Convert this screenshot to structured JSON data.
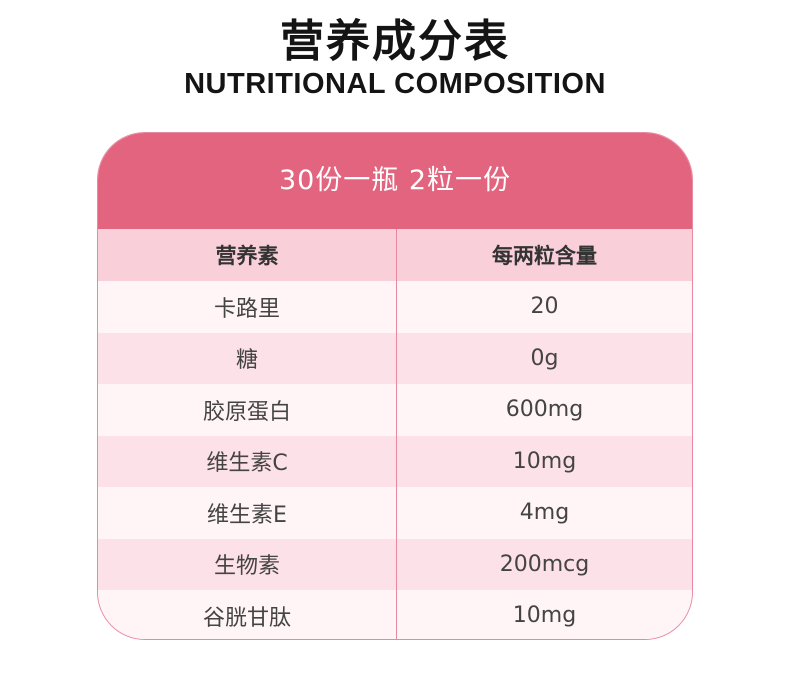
{
  "title_cn": "营养成分表",
  "title_en": "NUTRITIONAL COMPOSITION",
  "colors": {
    "header_bg": "#e2647f",
    "row_head_bg": "#f9cfd9",
    "row_alt_bg": "#fde1e8",
    "row_bg": "#fff5f7",
    "border": "#e7899f"
  },
  "table": {
    "serving": "30份一瓶  2粒一份",
    "headers": [
      "营养素",
      "每两粒含量"
    ],
    "rows": [
      {
        "nutrient": "卡路里",
        "amount": "20"
      },
      {
        "nutrient": "糖",
        "amount": "0g"
      },
      {
        "nutrient": "胶原蛋白",
        "amount": "600mg"
      },
      {
        "nutrient": "维生素C",
        "amount": "10mg"
      },
      {
        "nutrient": "维生素E",
        "amount": "4mg"
      },
      {
        "nutrient": "生物素",
        "amount": "200mcg"
      },
      {
        "nutrient": "谷胱甘肽",
        "amount": "10mg"
      }
    ]
  }
}
